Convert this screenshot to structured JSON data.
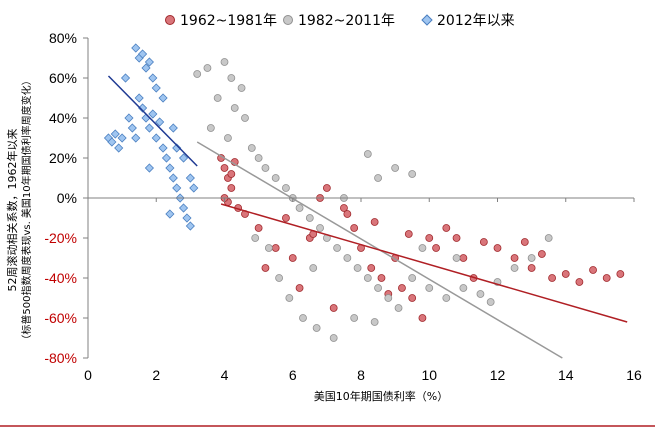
{
  "chart_data": {
    "type": "scatter",
    "title": "",
    "xlabel": "美国10年期国债利率（%）",
    "ylabel": [
      "52周滚动相关系数，1962年以来",
      "（标普500指数周度表现vs. 美国10年期国债利率周度变化）"
    ],
    "xlim": [
      0,
      16
    ],
    "ylim": [
      -0.8,
      0.8
    ],
    "x_ticks": [
      "0",
      "2",
      "4",
      "6",
      "8",
      "10",
      "12",
      "14",
      "16"
    ],
    "y_ticks": [
      "80%",
      "60%",
      "40%",
      "20%",
      "0%",
      "-20%",
      "-40%",
      "-60%",
      "-80%"
    ],
    "grid": false,
    "legend_position": "top",
    "series": [
      {
        "name": "1962~1981年",
        "marker": "circle",
        "fill": "#d9757a",
        "stroke": "#a0282c",
        "points": [
          [
            3.9,
            0.2
          ],
          [
            4.0,
            0.15
          ],
          [
            4.1,
            0.1
          ],
          [
            4.2,
            0.05
          ],
          [
            4.3,
            0.18
          ],
          [
            4.1,
            -0.02
          ],
          [
            4.0,
            0.0
          ],
          [
            4.2,
            0.12
          ],
          [
            4.4,
            -0.05
          ],
          [
            4.6,
            -0.08
          ],
          [
            5.0,
            -0.15
          ],
          [
            5.5,
            -0.25
          ],
          [
            6.0,
            -0.3
          ],
          [
            6.5,
            -0.2
          ],
          [
            6.8,
            0.0
          ],
          [
            7.0,
            0.05
          ],
          [
            7.5,
            -0.05
          ],
          [
            7.8,
            -0.15
          ],
          [
            8.0,
            -0.25
          ],
          [
            8.3,
            -0.35
          ],
          [
            8.6,
            -0.4
          ],
          [
            9.0,
            -0.3
          ],
          [
            9.2,
            -0.45
          ],
          [
            9.5,
            -0.5
          ],
          [
            10.0,
            -0.2
          ],
          [
            10.2,
            -0.25
          ],
          [
            10.5,
            -0.15
          ],
          [
            10.8,
            -0.2
          ],
          [
            11.0,
            -0.3
          ],
          [
            11.3,
            -0.4
          ],
          [
            11.6,
            -0.22
          ],
          [
            12.0,
            -0.25
          ],
          [
            12.5,
            -0.3
          ],
          [
            12.8,
            -0.22
          ],
          [
            13.0,
            -0.35
          ],
          [
            13.3,
            -0.28
          ],
          [
            13.6,
            -0.4
          ],
          [
            14.0,
            -0.38
          ],
          [
            14.4,
            -0.42
          ],
          [
            14.8,
            -0.36
          ],
          [
            15.2,
            -0.4
          ],
          [
            15.6,
            -0.38
          ],
          [
            5.2,
            -0.35
          ],
          [
            6.2,
            -0.45
          ],
          [
            7.2,
            -0.55
          ],
          [
            8.8,
            -0.48
          ],
          [
            9.8,
            -0.6
          ],
          [
            7.6,
            -0.08
          ],
          [
            8.4,
            -0.12
          ],
          [
            9.4,
            -0.18
          ],
          [
            6.6,
            -0.18
          ],
          [
            5.8,
            -0.1
          ]
        ]
      },
      {
        "name": "1982~2011年",
        "marker": "circle",
        "fill": "#c8c8c8",
        "stroke": "#909090",
        "points": [
          [
            3.2,
            0.62
          ],
          [
            3.5,
            0.65
          ],
          [
            4.0,
            0.68
          ],
          [
            4.2,
            0.6
          ],
          [
            4.5,
            0.55
          ],
          [
            3.8,
            0.5
          ],
          [
            4.3,
            0.45
          ],
          [
            4.6,
            0.4
          ],
          [
            3.6,
            0.35
          ],
          [
            4.1,
            0.3
          ],
          [
            4.8,
            0.25
          ],
          [
            5.0,
            0.2
          ],
          [
            5.2,
            0.15
          ],
          [
            5.5,
            0.1
          ],
          [
            5.8,
            0.05
          ],
          [
            6.0,
            0.0
          ],
          [
            6.2,
            -0.05
          ],
          [
            6.5,
            -0.1
          ],
          [
            6.8,
            -0.15
          ],
          [
            7.0,
            -0.2
          ],
          [
            7.3,
            -0.25
          ],
          [
            7.6,
            -0.3
          ],
          [
            7.9,
            -0.35
          ],
          [
            8.2,
            -0.4
          ],
          [
            8.5,
            -0.45
          ],
          [
            8.8,
            -0.5
          ],
          [
            9.1,
            -0.55
          ],
          [
            5.6,
            -0.4
          ],
          [
            5.9,
            -0.5
          ],
          [
            6.3,
            -0.6
          ],
          [
            6.7,
            -0.65
          ],
          [
            7.2,
            -0.7
          ],
          [
            7.8,
            -0.6
          ],
          [
            8.4,
            -0.62
          ],
          [
            9.5,
            -0.4
          ],
          [
            10.0,
            -0.45
          ],
          [
            10.5,
            -0.5
          ],
          [
            11.0,
            -0.45
          ],
          [
            11.5,
            -0.48
          ],
          [
            12.0,
            -0.42
          ],
          [
            12.5,
            -0.35
          ],
          [
            13.0,
            -0.3
          ],
          [
            13.5,
            -0.2
          ],
          [
            8.5,
            0.1
          ],
          [
            9.0,
            0.15
          ],
          [
            9.5,
            0.12
          ],
          [
            8.2,
            0.22
          ],
          [
            7.5,
            0.0
          ],
          [
            4.9,
            -0.2
          ],
          [
            5.3,
            -0.25
          ],
          [
            6.6,
            -0.35
          ],
          [
            10.8,
            -0.3
          ],
          [
            11.8,
            -0.52
          ],
          [
            9.8,
            -0.25
          ]
        ]
      },
      {
        "name": "2012年以来",
        "marker": "diamond",
        "fill": "#9fc5f0",
        "stroke": "#4a7fc0",
        "points": [
          [
            0.6,
            0.3
          ],
          [
            0.7,
            0.28
          ],
          [
            0.8,
            0.32
          ],
          [
            0.9,
            0.25
          ],
          [
            1.0,
            0.3
          ],
          [
            1.1,
            0.6
          ],
          [
            1.4,
            0.75
          ],
          [
            1.5,
            0.7
          ],
          [
            1.6,
            0.72
          ],
          [
            1.7,
            0.65
          ],
          [
            1.8,
            0.68
          ],
          [
            1.9,
            0.6
          ],
          [
            1.5,
            0.5
          ],
          [
            1.6,
            0.45
          ],
          [
            1.7,
            0.4
          ],
          [
            1.8,
            0.35
          ],
          [
            1.9,
            0.42
          ],
          [
            2.0,
            0.3
          ],
          [
            2.1,
            0.38
          ],
          [
            2.2,
            0.25
          ],
          [
            2.3,
            0.2
          ],
          [
            2.4,
            0.15
          ],
          [
            2.5,
            0.1
          ],
          [
            2.6,
            0.05
          ],
          [
            2.7,
            0.0
          ],
          [
            2.8,
            -0.05
          ],
          [
            2.9,
            -0.1
          ],
          [
            3.0,
            0.1
          ],
          [
            3.1,
            0.05
          ],
          [
            1.4,
            0.3
          ],
          [
            1.3,
            0.35
          ],
          [
            2.0,
            0.55
          ],
          [
            2.2,
            0.5
          ],
          [
            2.5,
            0.35
          ],
          [
            2.8,
            0.2
          ],
          [
            3.0,
            -0.14
          ],
          [
            1.2,
            0.4
          ],
          [
            2.4,
            -0.08
          ],
          [
            2.6,
            0.25
          ],
          [
            1.8,
            0.15
          ]
        ]
      }
    ],
    "trendlines": [
      {
        "series": "2012年以来",
        "color": "#1f3a93",
        "x": [
          0.6,
          3.2
        ],
        "y": [
          0.61,
          0.16
        ]
      },
      {
        "series": "1982~2011年",
        "color": "#999999",
        "x": [
          3.2,
          13.9
        ],
        "y": [
          0.28,
          -0.8
        ]
      },
      {
        "series": "1962~1981年",
        "color": "#b01f24",
        "x": [
          3.9,
          15.8
        ],
        "y": [
          -0.03,
          -0.62
        ]
      }
    ]
  }
}
